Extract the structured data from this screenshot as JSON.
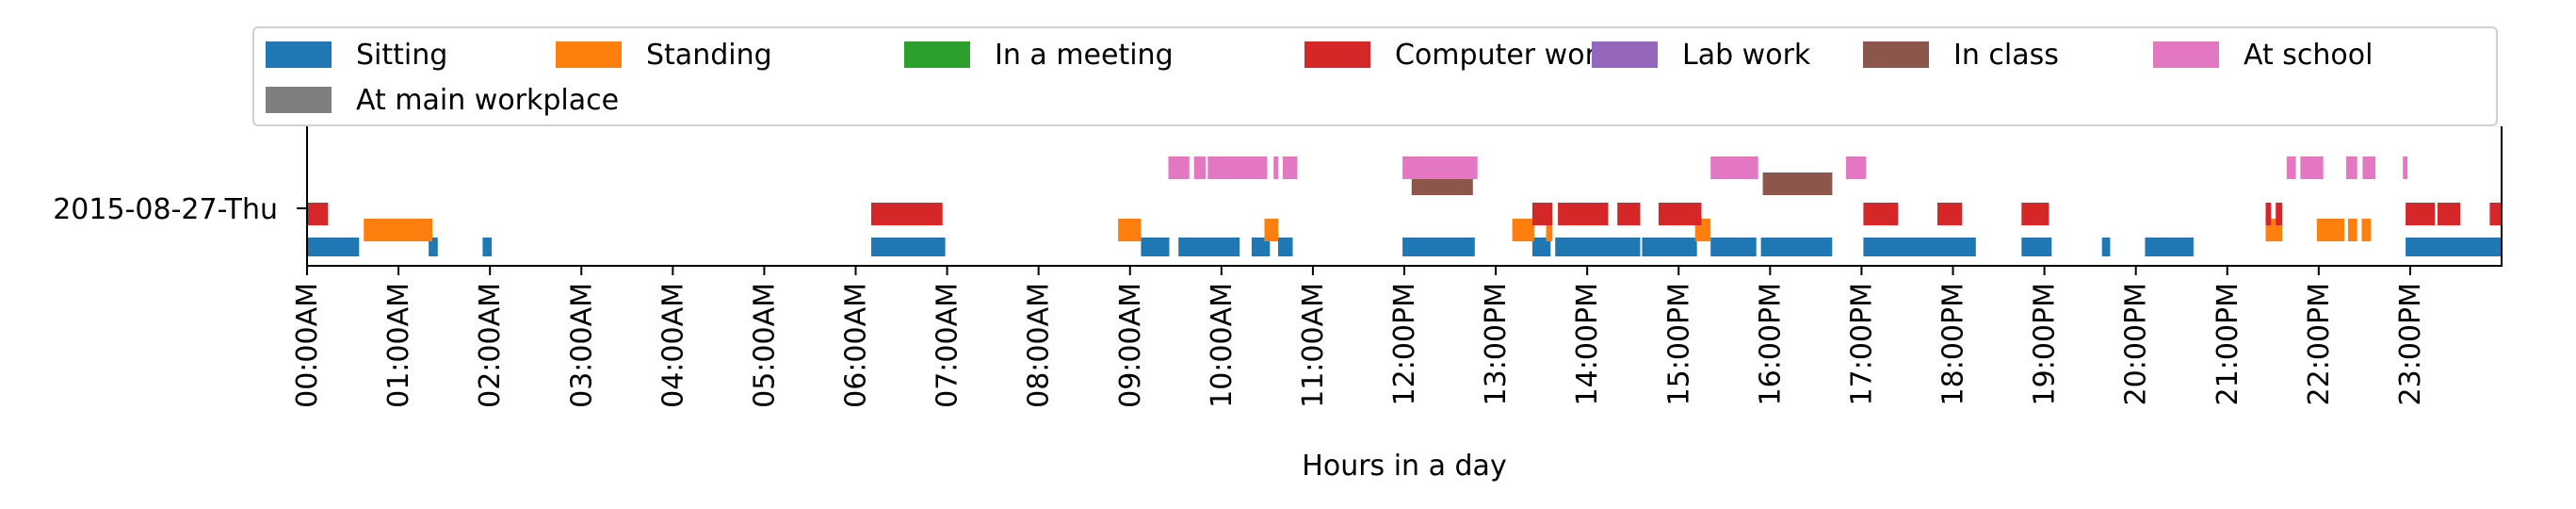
{
  "chart_data": {
    "type": "timeline",
    "xlabel": "Hours in a day",
    "row_label": "2015-08-27-Thu",
    "x_range": [
      0,
      24
    ],
    "x_ticks": [
      "00:00AM",
      "01:00AM",
      "02:00AM",
      "03:00AM",
      "04:00AM",
      "05:00AM",
      "06:00AM",
      "07:00AM",
      "08:00AM",
      "09:00AM",
      "10:00AM",
      "11:00AM",
      "12:00PM",
      "13:00PM",
      "14:00PM",
      "15:00PM",
      "16:00PM",
      "17:00PM",
      "18:00PM",
      "19:00PM",
      "20:00PM",
      "21:00PM",
      "22:00PM",
      "23:00PM"
    ],
    "legend_placement": "top",
    "series": [
      {
        "name": "Sitting",
        "color": "#1f77b4",
        "lane": 0,
        "intervals": [
          [
            0.0,
            0.57
          ],
          [
            1.33,
            1.43
          ],
          [
            1.92,
            2.02
          ],
          [
            6.17,
            6.98
          ],
          [
            9.12,
            9.43
          ],
          [
            9.53,
            10.2
          ],
          [
            10.33,
            10.53
          ],
          [
            10.62,
            10.78
          ],
          [
            11.98,
            12.77
          ],
          [
            13.4,
            13.6
          ],
          [
            13.65,
            14.58
          ],
          [
            14.6,
            15.2
          ],
          [
            15.35,
            15.85
          ],
          [
            15.9,
            16.68
          ],
          [
            17.02,
            18.25
          ],
          [
            18.75,
            19.08
          ],
          [
            19.63,
            19.72
          ],
          [
            20.1,
            20.63
          ],
          [
            22.95,
            24.0
          ]
        ]
      },
      {
        "name": "Standing",
        "color": "#ff7f0e",
        "lane": 1,
        "intervals": [
          [
            0.62,
            1.37
          ],
          [
            8.87,
            9.12
          ],
          [
            10.47,
            10.62
          ],
          [
            13.18,
            13.42
          ],
          [
            13.55,
            13.62
          ],
          [
            15.18,
            15.35
          ],
          [
            21.42,
            21.6
          ],
          [
            21.98,
            22.28
          ],
          [
            22.32,
            22.42
          ],
          [
            22.47,
            22.57
          ]
        ]
      },
      {
        "name": "In a meeting",
        "color": "#2ca02c",
        "lane": 3,
        "intervals": []
      },
      {
        "name": "Computer work",
        "color": "#d62728",
        "lane": 2,
        "intervals": [
          [
            0.0,
            0.23
          ],
          [
            6.17,
            6.95
          ],
          [
            13.4,
            13.62
          ],
          [
            13.68,
            14.23
          ],
          [
            14.33,
            14.58
          ],
          [
            14.78,
            15.25
          ],
          [
            17.02,
            17.4
          ],
          [
            17.83,
            18.1
          ],
          [
            18.75,
            19.05
          ],
          [
            21.42,
            21.48
          ],
          [
            21.53,
            21.6
          ],
          [
            22.95,
            23.27
          ],
          [
            23.3,
            23.55
          ],
          [
            23.87,
            24.0
          ]
        ]
      },
      {
        "name": "Lab work",
        "color": "#9467bd",
        "lane": 3,
        "intervals": []
      },
      {
        "name": "In class",
        "color": "#8c564b",
        "lane": 3,
        "intervals": [
          [
            12.08,
            12.75
          ],
          [
            15.92,
            16.68
          ]
        ]
      },
      {
        "name": "At school",
        "color": "#e377c2",
        "lane": 4,
        "intervals": [
          [
            9.42,
            9.65
          ],
          [
            9.7,
            9.83
          ],
          [
            9.85,
            10.5
          ],
          [
            10.57,
            10.62
          ],
          [
            10.67,
            10.83
          ],
          [
            11.98,
            12.8
          ],
          [
            15.35,
            15.87
          ],
          [
            16.83,
            17.05
          ],
          [
            21.65,
            21.75
          ],
          [
            21.8,
            22.05
          ],
          [
            22.3,
            22.42
          ],
          [
            22.48,
            22.62
          ],
          [
            22.92,
            22.97
          ]
        ]
      },
      {
        "name": "At main workplace",
        "color": "#7f7f7f",
        "lane": 4,
        "intervals": []
      }
    ]
  }
}
